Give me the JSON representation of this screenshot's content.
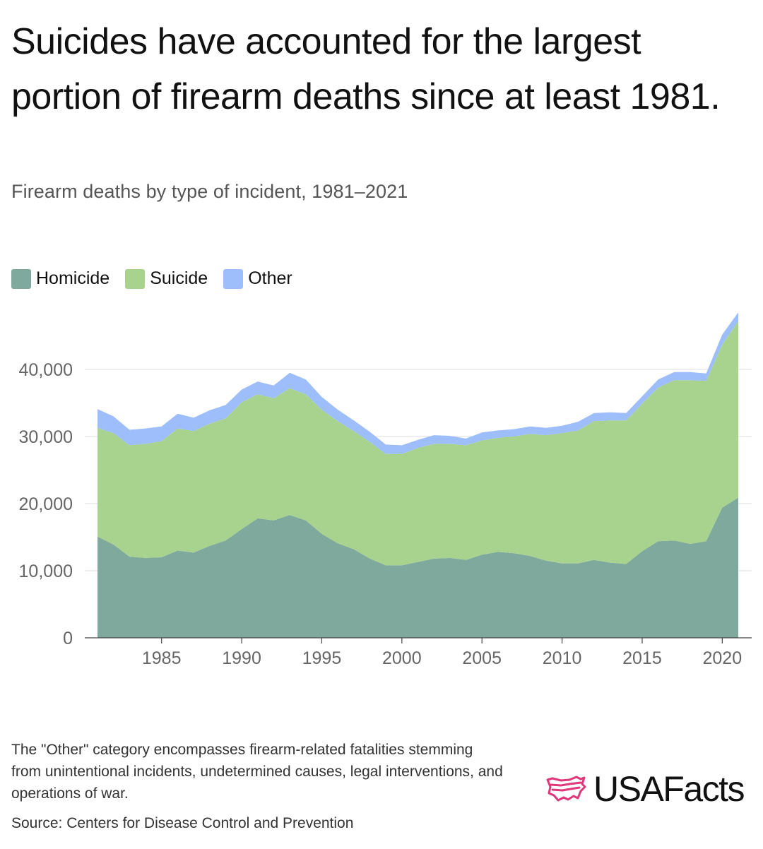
{
  "title": "Suicides have accounted for the largest portion of firearm deaths since at least 1981.",
  "subtitle": "Firearm deaths by type of incident, 1981–2021",
  "footnote": "The \"Other\" category encompasses firearm-related fatalities stemming from unintentional incidents, undetermined causes, legal interventions, and operations of war.",
  "source": "Source: Centers for Disease Control and Prevention",
  "logo": {
    "text": "USAFacts",
    "icon": "usa-map-flag-icon",
    "color": "#e0367a"
  },
  "legend": [
    {
      "label": "Homicide",
      "color": "#7fa99c"
    },
    {
      "label": "Suicide",
      "color": "#a8d38f"
    },
    {
      "label": "Other",
      "color": "#9dbefa"
    }
  ],
  "chart_data": {
    "type": "area",
    "stacked": true,
    "x": [
      1981,
      1982,
      1983,
      1984,
      1985,
      1986,
      1987,
      1988,
      1989,
      1990,
      1991,
      1992,
      1993,
      1994,
      1995,
      1996,
      1997,
      1998,
      1999,
      2000,
      2001,
      2002,
      2003,
      2004,
      2005,
      2006,
      2007,
      2008,
      2009,
      2010,
      2011,
      2012,
      2013,
      2014,
      2015,
      2016,
      2017,
      2018,
      2019,
      2020,
      2021
    ],
    "series": [
      {
        "name": "Homicide",
        "values": [
          15100,
          13900,
          12100,
          11900,
          12000,
          13000,
          12700,
          13700,
          14500,
          16200,
          17800,
          17500,
          18300,
          17500,
          15500,
          14100,
          13200,
          11800,
          10800,
          10800,
          11300,
          11800,
          11900,
          11600,
          12400,
          12800,
          12600,
          12200,
          11500,
          11100,
          11100,
          11600,
          11200,
          11000,
          12900,
          14400,
          14500,
          14000,
          14400,
          19400,
          20900
        ]
      },
      {
        "name": "Suicide",
        "values": [
          16200,
          16600,
          16600,
          17000,
          17300,
          18200,
          18100,
          18200,
          18200,
          18900,
          18500,
          18200,
          18900,
          18800,
          18500,
          18200,
          17600,
          17400,
          16600,
          16600,
          17000,
          17100,
          17000,
          17100,
          17000,
          17000,
          17400,
          18200,
          18700,
          19400,
          19800,
          20700,
          21200,
          21400,
          22000,
          22900,
          23900,
          24400,
          23900,
          24300,
          26300
        ]
      },
      {
        "name": "Other",
        "values": [
          2800,
          2500,
          2300,
          2300,
          2200,
          2200,
          2000,
          2000,
          2000,
          1900,
          1900,
          1900,
          2300,
          2200,
          1900,
          1700,
          1600,
          1500,
          1400,
          1300,
          1200,
          1300,
          1200,
          1000,
          1200,
          1100,
          1100,
          1100,
          1100,
          1100,
          1300,
          1200,
          1200,
          1100,
          1100,
          1200,
          1200,
          1200,
          1100,
          1500,
          1300
        ]
      }
    ],
    "y_ticks": [
      0,
      10000,
      20000,
      30000,
      40000
    ],
    "y_tick_labels": [
      "0",
      "10,000",
      "20,000",
      "30,000",
      "40,000"
    ],
    "x_ticks": [
      1985,
      1990,
      1995,
      2000,
      2005,
      2010,
      2015,
      2020
    ],
    "x_tick_labels": [
      "1985",
      "1990",
      "1995",
      "2000",
      "2005",
      "2010",
      "2015",
      "2020"
    ],
    "ylim": [
      0,
      50000
    ],
    "xlim": [
      1980,
      2022
    ],
    "grid": true,
    "xlabel": "",
    "ylabel": ""
  }
}
